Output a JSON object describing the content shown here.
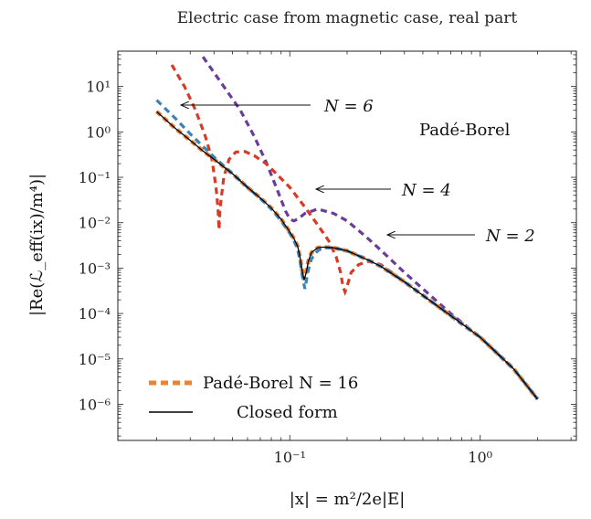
{
  "chart_data": {
    "type": "line",
    "title": "Electric case from magnetic case, real part",
    "xlabel": "|x| = m²/2e|E|",
    "ylabel": "|Re(ℒ_eff(ix)/m⁴)|",
    "xscale": "log",
    "yscale": "log",
    "xlim": [
      0.0125,
      3.2
    ],
    "ylim": [
      1.6e-07,
      60
    ],
    "x_ticks": [
      "10⁻¹",
      "10⁰"
    ],
    "y_ticks": [
      "10¹",
      "10⁰",
      "10⁻¹",
      "10⁻²",
      "10⁻³",
      "10⁻⁴",
      "10⁻⁵",
      "10⁻⁶"
    ],
    "inline_label": "Padé-Borel",
    "annotations": [
      {
        "text": "N = 6",
        "x": 0.026,
        "y": 3.0
      },
      {
        "text": "N = 4",
        "x": 0.13,
        "y": 0.0055
      },
      {
        "text": "N = 2",
        "x": 0.29,
        "y": 0.0052
      }
    ],
    "series": [
      {
        "name": "Closed form",
        "color": "#000000",
        "style": "solid",
        "x": [
          0.02,
          0.025,
          0.03,
          0.035,
          0.04,
          0.05,
          0.06,
          0.07,
          0.08,
          0.09,
          0.1,
          0.105,
          0.11,
          0.113,
          0.116,
          0.119,
          0.122,
          0.125,
          0.13,
          0.14,
          0.15,
          0.17,
          0.2,
          0.25,
          0.3,
          0.4,
          0.5,
          0.7,
          1.0,
          1.5,
          2.0
        ],
        "y": [
          2.8,
          1.2,
          0.65,
          0.38,
          0.25,
          0.12,
          0.06,
          0.035,
          0.021,
          0.012,
          0.0063,
          0.0045,
          0.003,
          0.0018,
          0.0009,
          0.00055,
          0.0008,
          0.0014,
          0.0022,
          0.0028,
          0.0029,
          0.0028,
          0.0024,
          0.0016,
          0.0011,
          0.0005,
          0.00025,
          9e-05,
          3e-05,
          6e-06,
          1.3e-06
        ]
      },
      {
        "name": "Padé-Borel N = 16",
        "color": "#e8833a",
        "style": "dashed",
        "x": [
          0.02,
          0.025,
          0.03,
          0.035,
          0.04,
          0.05,
          0.06,
          0.07,
          0.08,
          0.09,
          0.1,
          0.105,
          0.11,
          0.113,
          0.116,
          0.119,
          0.122,
          0.125,
          0.13,
          0.14,
          0.15,
          0.17,
          0.2,
          0.25,
          0.3,
          0.4,
          0.5,
          0.7,
          1.0,
          1.5,
          2.0
        ],
        "y": [
          2.8,
          1.2,
          0.65,
          0.38,
          0.25,
          0.12,
          0.06,
          0.035,
          0.021,
          0.012,
          0.0063,
          0.0045,
          0.003,
          0.0018,
          0.0009,
          0.00055,
          0.0008,
          0.0014,
          0.0022,
          0.0028,
          0.0029,
          0.0028,
          0.0024,
          0.0016,
          0.0011,
          0.0005,
          0.00025,
          9e-05,
          3e-05,
          6e-06,
          1.3e-06
        ]
      },
      {
        "name": "N = 6",
        "color": "#3b82b8",
        "style": "dashed",
        "x": [
          0.02,
          0.025,
          0.03,
          0.035,
          0.04,
          0.05,
          0.06,
          0.07,
          0.08,
          0.09,
          0.1,
          0.105,
          0.11,
          0.113,
          0.116,
          0.12,
          0.125,
          0.13,
          0.14,
          0.15,
          0.17,
          0.2,
          0.25,
          0.3,
          0.4,
          0.5,
          0.7,
          1.0,
          1.5,
          2.0
        ],
        "y": [
          5.0,
          2.0,
          0.9,
          0.48,
          0.28,
          0.12,
          0.06,
          0.034,
          0.02,
          0.011,
          0.0058,
          0.004,
          0.0026,
          0.0015,
          0.0007,
          0.00035,
          0.0009,
          0.0016,
          0.0024,
          0.0028,
          0.0028,
          0.0024,
          0.0016,
          0.0011,
          0.0005,
          0.00025,
          9e-05,
          3e-05,
          6e-06,
          1.3e-06
        ]
      },
      {
        "name": "N = 4",
        "color": "#d93a26",
        "style": "dashed",
        "x": [
          0.024,
          0.028,
          0.032,
          0.036,
          0.039,
          0.041,
          0.042,
          0.0425,
          0.043,
          0.045,
          0.048,
          0.052,
          0.058,
          0.065,
          0.075,
          0.085,
          0.1,
          0.12,
          0.14,
          0.16,
          0.175,
          0.185,
          0.19,
          0.195,
          0.2,
          0.21,
          0.23,
          0.26,
          0.3,
          0.4,
          0.5,
          0.7,
          1.0,
          1.5,
          2.0
        ],
        "y": [
          30,
          10,
          3.0,
          0.8,
          0.25,
          0.06,
          0.02,
          0.007,
          0.02,
          0.1,
          0.25,
          0.36,
          0.37,
          0.3,
          0.2,
          0.12,
          0.06,
          0.022,
          0.009,
          0.004,
          0.0018,
          0.0008,
          0.0004,
          0.0003,
          0.0004,
          0.0008,
          0.0012,
          0.0014,
          0.0012,
          0.0005,
          0.00025,
          9e-05,
          3e-05,
          6e-06,
          1.3e-06
        ]
      },
      {
        "name": "N = 2",
        "color": "#6a3d9a",
        "style": "dashed",
        "x": [
          0.035,
          0.045,
          0.055,
          0.065,
          0.075,
          0.085,
          0.095,
          0.1,
          0.105,
          0.11,
          0.12,
          0.14,
          0.17,
          0.2,
          0.25,
          0.3,
          0.4,
          0.5,
          0.7,
          1.0,
          1.5,
          2.0
        ],
        "y": [
          45,
          10,
          3.0,
          0.8,
          0.22,
          0.06,
          0.018,
          0.012,
          0.011,
          0.012,
          0.016,
          0.02,
          0.016,
          0.011,
          0.005,
          0.0025,
          0.0008,
          0.00035,
          0.0001,
          3e-05,
          6e-06,
          1.3e-06
        ]
      }
    ],
    "legend": {
      "placement": "bottom-left",
      "entries": [
        {
          "label": "Padé-Borel N = 16",
          "color": "#e8833a",
          "style": "dashed"
        },
        {
          "label": "Closed form",
          "color": "#000000",
          "style": "solid"
        }
      ]
    }
  }
}
